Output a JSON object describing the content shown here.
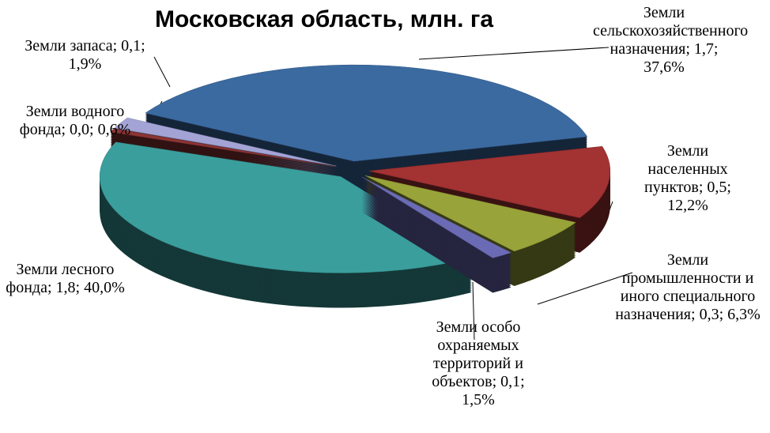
{
  "chart_data": {
    "type": "pie",
    "title": "Московская область, млн. га",
    "label_separator": "; ",
    "categories": [
      "Земли сельскохозяйственного назначения",
      "Земли населенных пунктов",
      "Земли промышленности и иного специального назначения",
      "Земли особо охраняемых территорий и объектов",
      "Земли лесного фонда",
      "Земли водного фонда",
      "Земли запаса"
    ],
    "values": [
      1.7,
      0.5,
      0.3,
      0.1,
      1.8,
      0.0,
      0.1
    ],
    "value_labels": [
      "1,7",
      "0,5",
      "0,3",
      "0,1",
      "1,8",
      "0,0",
      "0,1"
    ],
    "percents": [
      37.6,
      12.2,
      6.3,
      1.5,
      40.0,
      0.6,
      1.9
    ],
    "percent_labels": [
      "37,6%",
      "12,2%",
      "6,3%",
      "1,5%",
      "40,0%",
      "0,6%",
      "1,9%"
    ],
    "colors": [
      "#3b6aa0",
      "#a33232",
      "#98a339",
      "#6b6bb5",
      "#3a9e9c",
      "#8c3434",
      "#a3a3d6"
    ]
  }
}
